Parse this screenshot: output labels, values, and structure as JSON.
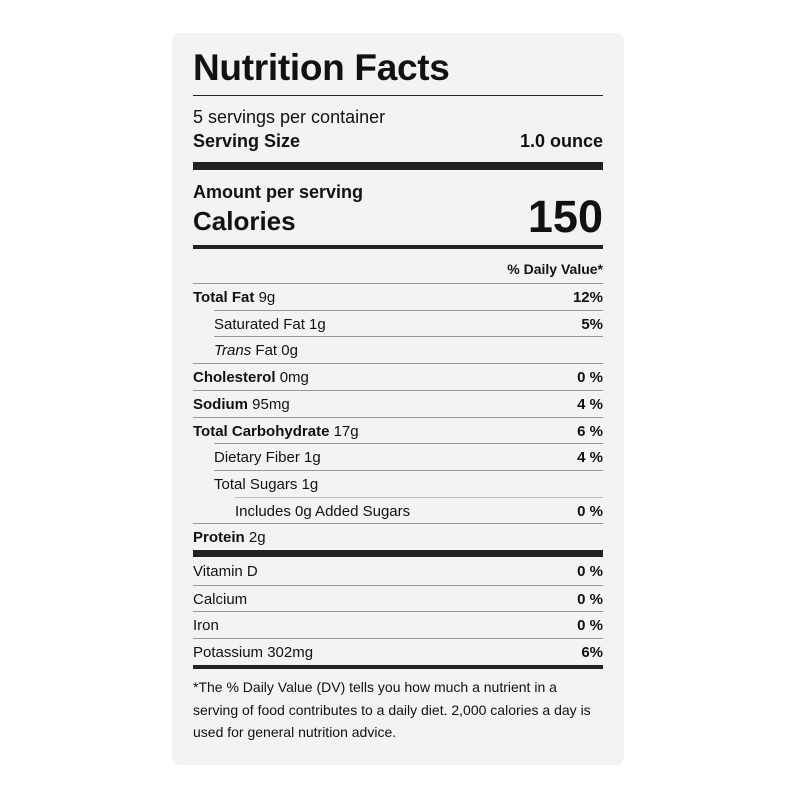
{
  "title": "Nutrition Facts",
  "servings_per_container": "5 servings per container",
  "serving_size": {
    "label": "Serving Size",
    "value": "1.0 ounce"
  },
  "amount_per_serving": "Amount per serving",
  "calories": {
    "label": "Calories",
    "value": 150
  },
  "daily_value_header": "% Daily Value*",
  "nutrients": [
    {
      "name": "Total Fat",
      "amount": "9g",
      "dv": "12%"
    },
    {
      "name": "Saturated Fat 1g",
      "dv": "5%"
    },
    {
      "prefix": "Trans",
      "name": "Fat 0g"
    },
    {
      "name": "Cholesterol",
      "amount": "0mg",
      "dv": "0 %"
    },
    {
      "name": "Sodium",
      "amount": "95mg",
      "dv": "4 %"
    },
    {
      "name": "Total Carbohydrate",
      "amount": "17g",
      "dv": "6 %"
    },
    {
      "name": "Dietary Fiber 1g",
      "dv": "4 %"
    },
    {
      "name": "Total Sugars 1g"
    },
    {
      "name": "Includes 0g Added Sugars",
      "dv": "0 %"
    },
    {
      "name": "Protein",
      "amount": "2g"
    }
  ],
  "vitamins": [
    {
      "name": "Vitamin D",
      "dv": "0 %"
    },
    {
      "name": "Calcium",
      "dv": "0 %"
    },
    {
      "name": "Iron",
      "dv": "0 %"
    },
    {
      "name": "Potassium 302mg",
      "dv": "6%"
    }
  ],
  "footnote": "*The % Daily Value (DV) tells you how much a nutrient in a serving of food contributes to a daily diet. 2,000 calories a day is used for general nutrition advice."
}
